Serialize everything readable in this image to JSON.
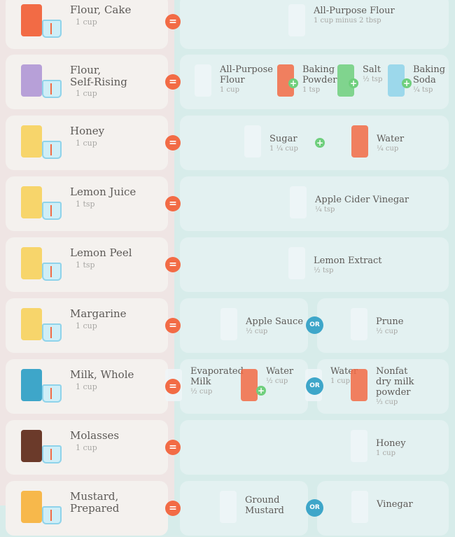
{
  "colors": {
    "equals": "#f26b45",
    "or": "#3ea6c9",
    "plus": "#6fcf7d",
    "left_bg": "#efe5e4",
    "right_bg": "#d7ecea"
  },
  "symbols": {
    "equals": "=",
    "or": "OR",
    "plus": "+"
  },
  "rows": [
    {
      "name": "Flour, Cake",
      "amount": "1 cup",
      "icon": "cake-flour-box-icon",
      "subs": [
        {
          "items": [
            {
              "name": "All-Purpose Flour",
              "amount": "1 cup minus 2 tbsp",
              "icon": "flour-bag-icon"
            }
          ]
        }
      ]
    },
    {
      "name": "Flour,\nSelf-Rising",
      "amount": "1 cup",
      "icon": "self-rising-flour-box-icon",
      "subs": [
        {
          "items": [
            {
              "name": "All-Purpose\nFlour",
              "amount": "1 cup",
              "icon": "measuring-cup-icon"
            },
            {
              "name": "Baking\nPowder",
              "amount": "1 tsp",
              "icon": "teaspoon-icon"
            },
            {
              "name": "Salt",
              "amount": "½ tsp",
              "icon": "half-teaspoon-icon"
            },
            {
              "name": "Baking\nSoda",
              "amount": "¼ tsp",
              "icon": "quarter-teaspoon-icon"
            }
          ]
        }
      ]
    },
    {
      "name": "Honey",
      "amount": "1 cup",
      "icon": "honey-jar-icon",
      "subs": [
        {
          "items": [
            {
              "name": "Sugar",
              "amount": "1 ¼ cup",
              "icon": "sugar-bag-icon"
            },
            {
              "name": "Water",
              "amount": "¼ cup",
              "icon": "water-bottle-icon"
            }
          ]
        }
      ]
    },
    {
      "name": "Lemon Juice",
      "amount": "1 tsp",
      "icon": "lemon-juice-bottle-icon",
      "subs": [
        {
          "items": [
            {
              "name": "Apple Cider Vinegar",
              "amount": "¼ tsp",
              "icon": "apple-cider-vinegar-icon"
            }
          ]
        }
      ]
    },
    {
      "name": "Lemon Peel",
      "amount": "1 tsp",
      "icon": "lemon-slice-icon",
      "subs": [
        {
          "items": [
            {
              "name": "Lemon Extract",
              "amount": "½ tsp",
              "icon": "extract-bottle-icon"
            }
          ]
        }
      ]
    },
    {
      "name": "Margarine",
      "amount": "1 cup",
      "icon": "margarine-tub-icon",
      "subs": [
        {
          "items": [
            {
              "name": "Apple Sauce",
              "amount": "½ cup",
              "icon": "apple-sauce-jar-icon"
            }
          ]
        },
        {
          "items": [
            {
              "name": "Prune",
              "amount": "½ cup",
              "icon": "prune-jar-icon"
            }
          ]
        }
      ]
    },
    {
      "name": "Milk, Whole",
      "amount": "1 cup",
      "icon": "milk-carton-icon",
      "subs": [
        {
          "items": [
            {
              "name": "Evaporated\nMilk",
              "amount": "½ cup",
              "icon": "evaporated-milk-can-icon"
            },
            {
              "name": "Water",
              "amount": "½ cup",
              "icon": "measuring-cup-icon"
            }
          ]
        },
        {
          "items": [
            {
              "name": "Water",
              "amount": "1 cup",
              "icon": "measuring-cup-icon"
            },
            {
              "name": "Nonfat\ndry milk\npowder",
              "amount": "⅓ cup",
              "icon": "dry-milk-container-icon"
            }
          ]
        }
      ]
    },
    {
      "name": "Molasses",
      "amount": "1 cup",
      "icon": "molasses-jar-icon",
      "subs": [
        {
          "items": [
            {
              "name": "Honey",
              "amount": "1 cup",
              "icon": "honey-jar-icon"
            }
          ]
        }
      ]
    },
    {
      "name": "Mustard,\nPrepared",
      "amount": "",
      "icon": "mustard-bottle-icon",
      "subs": [
        {
          "items": [
            {
              "name": "Ground\nMustard",
              "amount": "",
              "icon": "mustard-jar-icon"
            }
          ]
        },
        {
          "items": [
            {
              "name": "Vinegar",
              "amount": "",
              "icon": "vinegar-bottle-icon"
            }
          ]
        }
      ]
    }
  ]
}
